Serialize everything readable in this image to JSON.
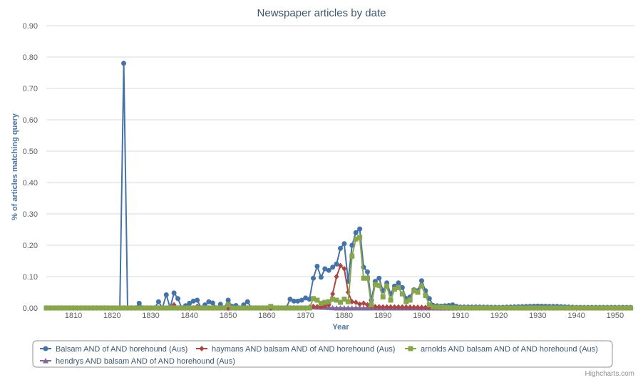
{
  "chart_data": {
    "type": "line",
    "title": "Newspaper articles by date",
    "xlabel": "Year",
    "ylabel": "% of articles matching query",
    "xlim": [
      1803,
      1955
    ],
    "ylim": [
      0,
      0.9
    ],
    "x_ticks": [
      "1810",
      "1820",
      "1830",
      "1840",
      "1850",
      "1860",
      "1870",
      "1880",
      "1890",
      "1900",
      "1910",
      "1920",
      "1930",
      "1940",
      "1950"
    ],
    "y_ticks": [
      "0.00",
      "0.10",
      "0.20",
      "0.30",
      "0.40",
      "0.50",
      "0.60",
      "0.70",
      "0.80",
      "0.90"
    ],
    "grid": "horizontal",
    "legend_position": "bottom",
    "credits": "Highcharts.com",
    "series": [
      {
        "name": "Balsam AND of AND horehound (Aus)",
        "color": "#4572a7",
        "marker": "circle",
        "points": [
          [
            1803,
            0
          ],
          [
            1810,
            0
          ],
          [
            1820,
            0
          ],
          [
            1822,
            0
          ],
          [
            1823,
            0.78
          ],
          [
            1824,
            0
          ],
          [
            1826,
            0
          ],
          [
            1827,
            0.015
          ],
          [
            1828,
            0
          ],
          [
            1831,
            0
          ],
          [
            1832,
            0.02
          ],
          [
            1833,
            0
          ],
          [
            1834,
            0.042
          ],
          [
            1835,
            0
          ],
          [
            1836,
            0.048
          ],
          [
            1837,
            0.03
          ],
          [
            1838,
            0
          ],
          [
            1840,
            0.015
          ],
          [
            1841,
            0.022
          ],
          [
            1842,
            0.025
          ],
          [
            1843,
            0
          ],
          [
            1845,
            0.02
          ],
          [
            1846,
            0.016
          ],
          [
            1847,
            0
          ],
          [
            1848,
            0.012
          ],
          [
            1849,
            0
          ],
          [
            1850,
            0.025
          ],
          [
            1851,
            0.005
          ],
          [
            1852,
            0.008
          ],
          [
            1853,
            0
          ],
          [
            1855,
            0.02
          ],
          [
            1856,
            0
          ],
          [
            1865,
            0
          ],
          [
            1866,
            0.028
          ],
          [
            1867,
            0.022
          ],
          [
            1868,
            0.022
          ],
          [
            1869,
            0.025
          ],
          [
            1870,
            0.032
          ],
          [
            1871,
            0.028
          ],
          [
            1872,
            0.095
          ],
          [
            1873,
            0.133
          ],
          [
            1874,
            0.098
          ],
          [
            1875,
            0.125
          ],
          [
            1876,
            0.12
          ],
          [
            1877,
            0.13
          ],
          [
            1878,
            0.14
          ],
          [
            1879,
            0.19
          ],
          [
            1880,
            0.205
          ],
          [
            1881,
            0.085
          ],
          [
            1882,
            0.2
          ],
          [
            1883,
            0.24
          ],
          [
            1884,
            0.252
          ],
          [
            1885,
            0.13
          ],
          [
            1886,
            0.115
          ],
          [
            1887,
            0.025
          ],
          [
            1888,
            0.085
          ],
          [
            1889,
            0.095
          ],
          [
            1890,
            0.055
          ],
          [
            1891,
            0.08
          ],
          [
            1892,
            0.045
          ],
          [
            1893,
            0.07
          ],
          [
            1894,
            0.08
          ],
          [
            1895,
            0.065
          ],
          [
            1896,
            0.03
          ],
          [
            1897,
            0.035
          ],
          [
            1898,
            0.058
          ],
          [
            1899,
            0.055
          ],
          [
            1900,
            0.087
          ],
          [
            1901,
            0.055
          ],
          [
            1902,
            0.03
          ],
          [
            1903,
            0.008
          ],
          [
            1905,
            0.006
          ],
          [
            1907,
            0.008
          ],
          [
            1908,
            0.01
          ],
          [
            1909,
            0.005
          ],
          [
            1910,
            0.003
          ],
          [
            1915,
            0.003
          ],
          [
            1920,
            0.002
          ],
          [
            1930,
            0.006
          ],
          [
            1933,
            0.005
          ],
          [
            1935,
            0.005
          ],
          [
            1940,
            0.002
          ],
          [
            1945,
            0.002
          ],
          [
            1950,
            0.002
          ],
          [
            1954,
            0.002
          ]
        ]
      },
      {
        "name": "haymans AND balsam AND of AND horehound (Aus)",
        "color": "#aa4643",
        "marker": "diamond",
        "points": [
          [
            1803,
            0
          ],
          [
            1835,
            0
          ],
          [
            1836,
            0.01
          ],
          [
            1837,
            0
          ],
          [
            1841,
            0
          ],
          [
            1842,
            0.005
          ],
          [
            1843,
            0
          ],
          [
            1870,
            0
          ],
          [
            1872,
            0.005
          ],
          [
            1874,
            0.003
          ],
          [
            1876,
            0.01
          ],
          [
            1877,
            0.045
          ],
          [
            1878,
            0.1
          ],
          [
            1879,
            0.135
          ],
          [
            1880,
            0.125
          ],
          [
            1881,
            0.05
          ],
          [
            1882,
            0.02
          ],
          [
            1883,
            0.018
          ],
          [
            1884,
            0.012
          ],
          [
            1885,
            0.015
          ],
          [
            1886,
            0.01
          ],
          [
            1887,
            0.005
          ],
          [
            1890,
            0.003
          ],
          [
            1895,
            0.003
          ],
          [
            1900,
            0.002
          ],
          [
            1905,
            0
          ],
          [
            1954,
            0
          ]
        ]
      },
      {
        "name": "arnolds AND balsam AND of AND horehound (Aus)",
        "color": "#89a54e",
        "marker": "square",
        "points": [
          [
            1803,
            0
          ],
          [
            1849,
            0
          ],
          [
            1850,
            0.01
          ],
          [
            1851,
            0
          ],
          [
            1860,
            0
          ],
          [
            1861,
            0.005
          ],
          [
            1862,
            0
          ],
          [
            1871,
            0
          ],
          [
            1872,
            0.03
          ],
          [
            1873,
            0.025
          ],
          [
            1874,
            0.015
          ],
          [
            1875,
            0.018
          ],
          [
            1876,
            0.02
          ],
          [
            1877,
            0.028
          ],
          [
            1878,
            0.025
          ],
          [
            1879,
            0.018
          ],
          [
            1880,
            0.028
          ],
          [
            1881,
            0.02
          ],
          [
            1882,
            0.165
          ],
          [
            1883,
            0.22
          ],
          [
            1884,
            0.225
          ],
          [
            1885,
            0.095
          ],
          [
            1886,
            0.095
          ],
          [
            1887,
            0.01
          ],
          [
            1888,
            0.075
          ],
          [
            1889,
            0.072
          ],
          [
            1890,
            0.035
          ],
          [
            1891,
            0.07
          ],
          [
            1892,
            0.025
          ],
          [
            1893,
            0.06
          ],
          [
            1894,
            0.065
          ],
          [
            1895,
            0.045
          ],
          [
            1896,
            0.02
          ],
          [
            1897,
            0.025
          ],
          [
            1898,
            0.055
          ],
          [
            1899,
            0.05
          ],
          [
            1900,
            0.07
          ],
          [
            1901,
            0.04
          ],
          [
            1902,
            0.01
          ],
          [
            1903,
            0.003
          ],
          [
            1905,
            0.002
          ],
          [
            1910,
            0
          ],
          [
            1954,
            0
          ]
        ]
      },
      {
        "name": "hendrys AND balsam AND of AND horehound (Aus)",
        "color": "#80699b",
        "marker": "triangle",
        "points": [
          [
            1803,
            0
          ],
          [
            1870,
            0
          ],
          [
            1872,
            0.003
          ],
          [
            1875,
            0.002
          ],
          [
            1878,
            0
          ],
          [
            1954,
            0
          ]
        ]
      }
    ]
  }
}
